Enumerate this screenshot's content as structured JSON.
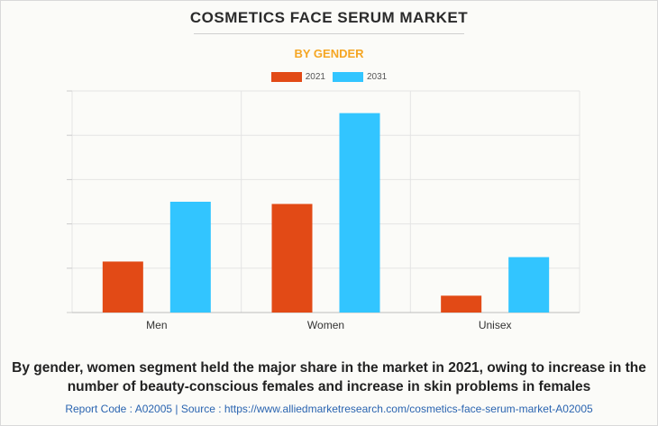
{
  "chart_data": {
    "type": "bar",
    "title": "COSMETICS FACE SERUM MARKET",
    "subtitle": "BY GENDER",
    "categories": [
      "Men",
      "Women",
      "Unisex"
    ],
    "series": [
      {
        "name": "2021",
        "color": "#e24a16",
        "values": [
          1.15,
          2.45,
          0.38
        ]
      },
      {
        "name": "2031",
        "color": "#32c5ff",
        "values": [
          2.5,
          4.5,
          1.25
        ]
      }
    ],
    "ylim": [
      0,
      5
    ],
    "y_gridlines": 5,
    "y_tick_labels_shown": false,
    "grid": true,
    "legend_position": "top-center"
  },
  "caption": "By gender, women segment held the major share in the market in 2021, owing to increase in the number of beauty-conscious females and increase in skin problems in females",
  "source_line": "Report Code : A02005  |  Source : https://www.alliedmarketresearch.com/cosmetics-face-serum-market-A02005"
}
